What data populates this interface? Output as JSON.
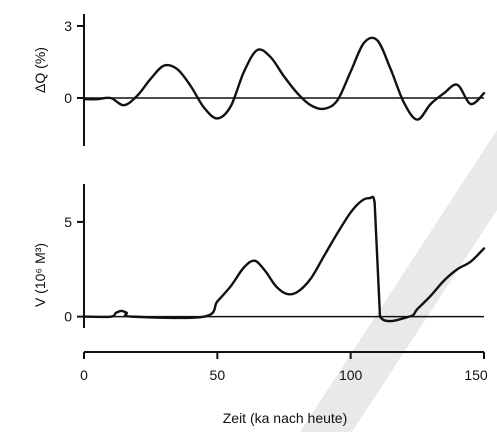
{
  "chart_data": [
    {
      "type": "line",
      "ylabel": "ΔQ (%)",
      "yticks": [
        0,
        3
      ],
      "ytick_labels": [
        "0",
        "3"
      ],
      "ylim": [
        -2,
        3.5
      ],
      "xlim": [
        0,
        150
      ],
      "series": [
        {
          "x": [
            0,
            5,
            10,
            15,
            20,
            25,
            30,
            35,
            40,
            45,
            50,
            55,
            60,
            65,
            70,
            75,
            80,
            85,
            90,
            95,
            100,
            105,
            110,
            115,
            120,
            125,
            130,
            135,
            140,
            145,
            150
          ],
          "y": [
            -0.05,
            -0.05,
            0.0,
            -0.3,
            0.1,
            0.8,
            1.35,
            1.2,
            0.5,
            -0.4,
            -0.85,
            -0.35,
            1.1,
            2.0,
            1.7,
            0.9,
            0.2,
            -0.3,
            -0.45,
            -0.1,
            1.1,
            2.3,
            2.4,
            1.2,
            -0.2,
            -0.9,
            -0.25,
            0.2,
            0.55,
            -0.25,
            0.2
          ]
        }
      ]
    },
    {
      "type": "line",
      "ylabel": "V (10⁶ M³)",
      "yticks": [
        0,
        5
      ],
      "ytick_labels": [
        "0",
        "5"
      ],
      "ylim": [
        -0.6,
        7
      ],
      "xlim": [
        0,
        150
      ],
      "series": [
        {
          "x": [
            0,
            10,
            12,
            14,
            16,
            18,
            45,
            50,
            55,
            60,
            64,
            68,
            72,
            76,
            80,
            85,
            90,
            95,
            100,
            104,
            107,
            109,
            110,
            111,
            122,
            125,
            130,
            135,
            140,
            145,
            150
          ],
          "y": [
            0,
            0,
            0.2,
            0.3,
            0.2,
            0,
            0,
            0.8,
            1.6,
            2.6,
            2.95,
            2.4,
            1.6,
            1.2,
            1.3,
            2.0,
            3.2,
            4.4,
            5.5,
            6.1,
            6.25,
            6.0,
            3.0,
            0,
            0,
            0.4,
            1.1,
            1.9,
            2.5,
            2.9,
            3.6
          ]
        }
      ]
    }
  ],
  "x_axis": {
    "ticks": [
      0,
      50,
      100,
      150
    ],
    "tick_labels": [
      "0",
      "50",
      "100",
      "150"
    ],
    "label": "Zeit (ka nach heute)"
  }
}
